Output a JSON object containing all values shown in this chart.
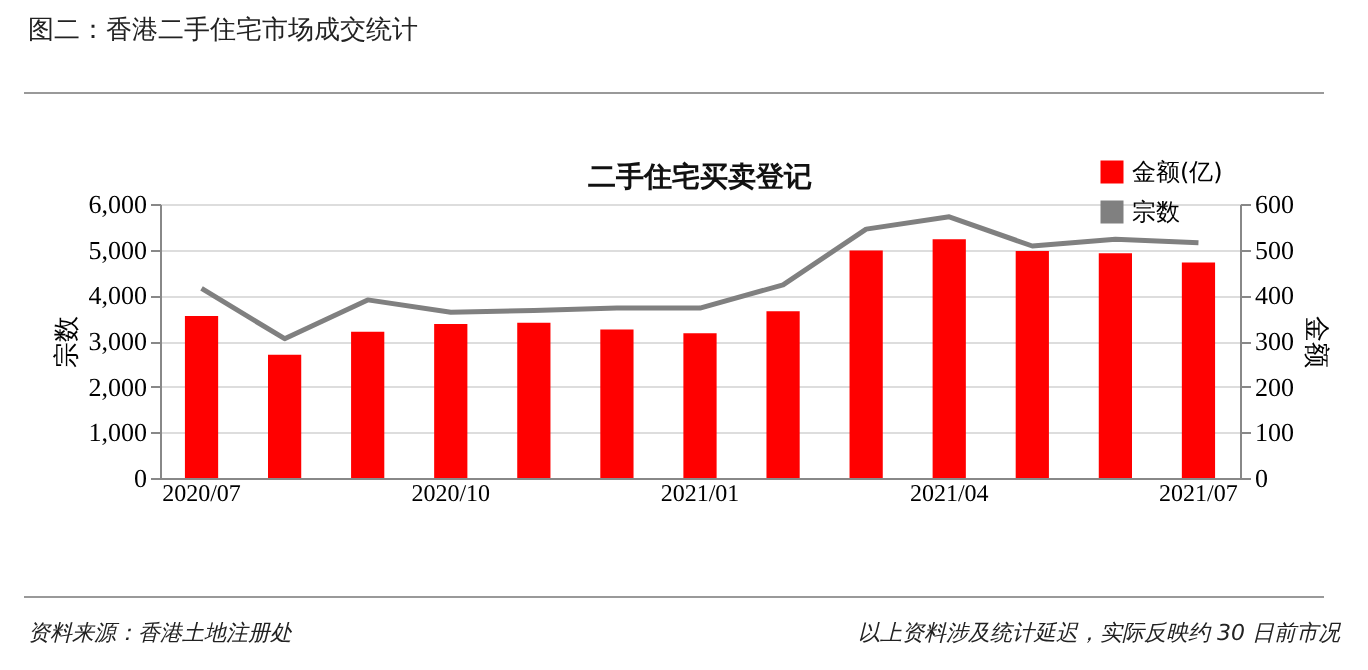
{
  "chart_data": {
    "type": "bar",
    "title": "图二：香港二手住宅市场成交统计",
    "subtitle": "二手住宅买卖登记",
    "categories": [
      "2020/07",
      null,
      null,
      "2020/10",
      null,
      null,
      "2021/01",
      null,
      null,
      "2021/04",
      null,
      null,
      "2021/07"
    ],
    "series": [
      {
        "name": "金额(亿)",
        "axis": "y2",
        "color": "#ff0000",
        "values": [
          355,
          270,
          320,
          337,
          340,
          325,
          317,
          365,
          498,
          523,
          497,
          492,
          472
        ]
      },
      {
        "name": "宗数",
        "type": "line",
        "color": "#808080",
        "values": [
          4150,
          3050,
          3900,
          3630,
          3670,
          3720,
          3720,
          4230,
          5450,
          5720,
          5080,
          5230,
          5150
        ]
      }
    ],
    "ylabel": "宗数",
    "y2label": "金额",
    "ylim": [
      0,
      6000
    ],
    "yticks": [
      0,
      {
        "value": 1000,
        "label": "1,000"
      },
      {
        "value": 2000,
        "label": "2,000"
      },
      {
        "value": 3000,
        "label": "3,000"
      },
      {
        "value": 4000,
        "label": "4,000"
      },
      {
        "value": 5000,
        "label": "5,000"
      },
      {
        "value": 6000,
        "label": "6,000"
      }
    ],
    "y2lim": [
      0,
      600
    ],
    "y2ticks": [
      0,
      100,
      200,
      300,
      400,
      500,
      600
    ],
    "grid": "y",
    "legend": "top right",
    "annotations": [
      "资料来源：香港土地注册处",
      "以上资料涉及统计延迟，实际反映约 30 日前市况"
    ]
  }
}
